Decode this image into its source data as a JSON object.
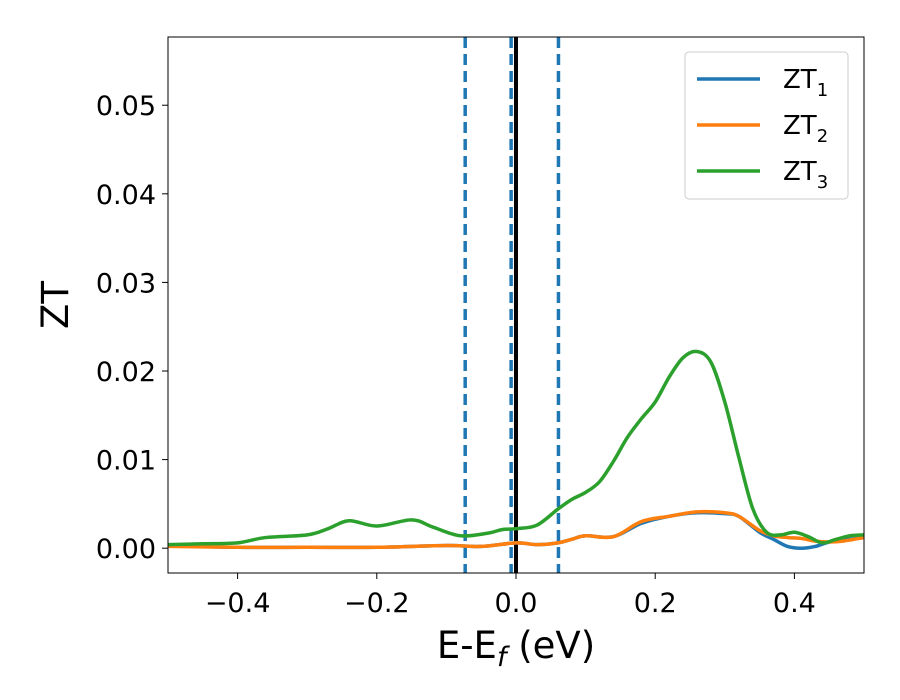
{
  "chart_data": {
    "type": "line",
    "title": "",
    "xlabel_main": "E-E",
    "xlabel_sub": "f",
    "xlabel_unit": " (eV)",
    "ylabel": "ZT",
    "xlim": [
      -0.5,
      0.5
    ],
    "ylim": [
      -0.0028,
      0.0577
    ],
    "x_ticks": [
      -0.4,
      -0.2,
      0.0,
      0.2,
      0.4
    ],
    "x_tick_labels": [
      "−0.4",
      "−0.2",
      "0.0",
      "0.2",
      "0.4"
    ],
    "y_ticks": [
      0.0,
      0.01,
      0.02,
      0.03,
      0.04,
      0.05
    ],
    "y_tick_labels": [
      "0.00",
      "0.01",
      "0.02",
      "0.03",
      "0.04",
      "0.05"
    ],
    "grid": false,
    "legend_position": "top-right",
    "vlines": [
      {
        "x": -0.073,
        "style": "dashed",
        "color": "#1f77b4"
      },
      {
        "x": -0.007,
        "style": "dashed",
        "color": "#1f77b4"
      },
      {
        "x": 0.061,
        "style": "dashed",
        "color": "#1f77b4"
      },
      {
        "x": 0.0,
        "style": "solid",
        "color": "#000000"
      }
    ],
    "series": [
      {
        "name_main": "ZT",
        "name_sub": "1",
        "color": "#1f77b4",
        "points": [
          [
            -0.5,
            0.0003
          ],
          [
            -0.4,
            0.0001
          ],
          [
            -0.3,
            0.0001
          ],
          [
            -0.2,
            0.0001
          ],
          [
            -0.1,
            0.0003
          ],
          [
            -0.05,
            0.0002
          ],
          [
            0.0,
            0.0006
          ],
          [
            0.03,
            0.0004
          ],
          [
            0.06,
            0.0006
          ],
          [
            0.08,
            0.001
          ],
          [
            0.1,
            0.0014
          ],
          [
            0.14,
            0.0013
          ],
          [
            0.18,
            0.0028
          ],
          [
            0.22,
            0.0036
          ],
          [
            0.26,
            0.004
          ],
          [
            0.3,
            0.0039
          ],
          [
            0.32,
            0.0036
          ],
          [
            0.35,
            0.0018
          ],
          [
            0.37,
            0.001
          ],
          [
            0.39,
            0.0002
          ],
          [
            0.41,
            0.0
          ],
          [
            0.43,
            0.0002
          ],
          [
            0.45,
            0.0007
          ],
          [
            0.47,
            0.0009
          ],
          [
            0.5,
            0.0012
          ]
        ]
      },
      {
        "name_main": "ZT",
        "name_sub": "2",
        "color": "#ff7f0e",
        "points": [
          [
            -0.5,
            0.0002
          ],
          [
            -0.4,
            0.0001
          ],
          [
            -0.3,
            0.0001
          ],
          [
            -0.2,
            0.0001
          ],
          [
            -0.1,
            0.0003
          ],
          [
            -0.05,
            0.0002
          ],
          [
            0.0,
            0.0006
          ],
          [
            0.03,
            0.0004
          ],
          [
            0.06,
            0.0006
          ],
          [
            0.08,
            0.001
          ],
          [
            0.1,
            0.0014
          ],
          [
            0.14,
            0.0013
          ],
          [
            0.18,
            0.003
          ],
          [
            0.22,
            0.0036
          ],
          [
            0.26,
            0.0041
          ],
          [
            0.3,
            0.004
          ],
          [
            0.32,
            0.0036
          ],
          [
            0.35,
            0.002
          ],
          [
            0.37,
            0.0014
          ],
          [
            0.39,
            0.0012
          ],
          [
            0.41,
            0.0011
          ],
          [
            0.43,
            0.0008
          ],
          [
            0.45,
            0.0007
          ],
          [
            0.47,
            0.0008
          ],
          [
            0.5,
            0.0012
          ]
        ]
      },
      {
        "name_main": "ZT",
        "name_sub": "3",
        "color": "#2ca02c",
        "points": [
          [
            -0.5,
            0.0004
          ],
          [
            -0.45,
            0.0005
          ],
          [
            -0.4,
            0.0006
          ],
          [
            -0.36,
            0.0012
          ],
          [
            -0.3,
            0.0015
          ],
          [
            -0.27,
            0.0022
          ],
          [
            -0.24,
            0.0031
          ],
          [
            -0.2,
            0.0025
          ],
          [
            -0.15,
            0.0032
          ],
          [
            -0.12,
            0.0024
          ],
          [
            -0.08,
            0.0014
          ],
          [
            -0.04,
            0.0017
          ],
          [
            -0.02,
            0.0021
          ],
          [
            0.0,
            0.0022
          ],
          [
            0.03,
            0.0026
          ],
          [
            0.06,
            0.0044
          ],
          [
            0.08,
            0.0055
          ],
          [
            0.1,
            0.0063
          ],
          [
            0.12,
            0.0075
          ],
          [
            0.14,
            0.0098
          ],
          [
            0.16,
            0.0125
          ],
          [
            0.18,
            0.0146
          ],
          [
            0.2,
            0.0165
          ],
          [
            0.22,
            0.0193
          ],
          [
            0.24,
            0.0215
          ],
          [
            0.26,
            0.0222
          ],
          [
            0.28,
            0.021
          ],
          [
            0.3,
            0.0165
          ],
          [
            0.32,
            0.0103
          ],
          [
            0.34,
            0.0045
          ],
          [
            0.36,
            0.0018
          ],
          [
            0.38,
            0.0015
          ],
          [
            0.4,
            0.0018
          ],
          [
            0.42,
            0.0013
          ],
          [
            0.44,
            0.0006
          ],
          [
            0.46,
            0.001
          ],
          [
            0.48,
            0.0014
          ],
          [
            0.5,
            0.0015
          ]
        ]
      }
    ]
  }
}
